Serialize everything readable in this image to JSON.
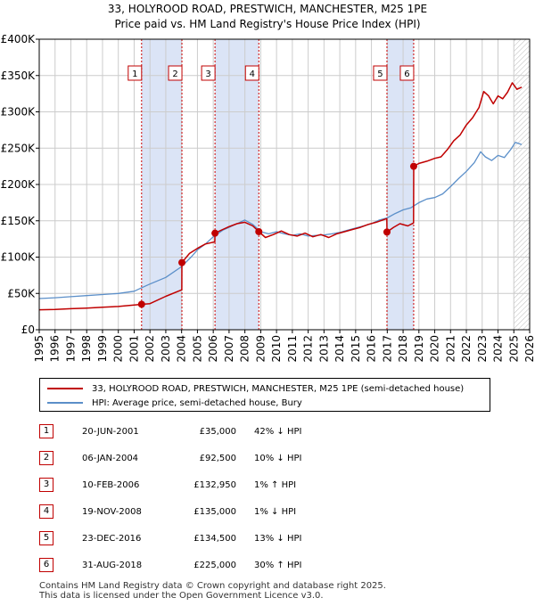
{
  "title": {
    "line1": "33, HOLYROOD ROAD, PRESTWICH, MANCHESTER, M25 1PE",
    "line2": "Price paid vs. HM Land Registry's House Price Index (HPI)"
  },
  "chart_data": {
    "type": "line",
    "title": "33, HOLYROOD ROAD, PRESTWICH, MANCHESTER, M25 1PE — Price paid vs. HM Land Registry's House Price Index (HPI)",
    "xlim": [
      1995,
      2026
    ],
    "ylim": [
      0,
      400000
    ],
    "x_ticks": [
      1995,
      1996,
      1997,
      1998,
      1999,
      2000,
      2001,
      2002,
      2003,
      2004,
      2005,
      2006,
      2007,
      2008,
      2009,
      2010,
      2011,
      2012,
      2013,
      2014,
      2015,
      2016,
      2017,
      2018,
      2019,
      2020,
      2021,
      2022,
      2023,
      2024,
      2025,
      2026
    ],
    "y_ticks": [
      {
        "value": 0,
        "label": "£0"
      },
      {
        "value": 50000,
        "label": "£50K"
      },
      {
        "value": 100000,
        "label": "£100K"
      },
      {
        "value": 150000,
        "label": "£150K"
      },
      {
        "value": 200000,
        "label": "£200K"
      },
      {
        "value": 250000,
        "label": "£250K"
      },
      {
        "value": 300000,
        "label": "£300K"
      },
      {
        "value": 350000,
        "label": "£350K"
      },
      {
        "value": 400000,
        "label": "£400K"
      }
    ],
    "grid": true,
    "colors": {
      "property": "#c00000",
      "hpi": "#5b8fc9",
      "shade": "#dbe4f6",
      "vline": "#cc0000",
      "axis": "#000000",
      "grid": "#cccccc"
    },
    "shaded_periods": [
      [
        2001.47,
        2004.02
      ],
      [
        2006.11,
        2008.88
      ],
      [
        2016.98,
        2018.67
      ]
    ],
    "hatch_from": 2025.0,
    "series": [
      {
        "name": "33, HOLYROOD ROAD, PRESTWICH, MANCHESTER, M25 1PE (semi-detached house)",
        "key": "property",
        "points": [
          [
            1995,
            27500
          ],
          [
            1996,
            28000
          ],
          [
            1997,
            29000
          ],
          [
            1998,
            29800
          ],
          [
            1999,
            31000
          ],
          [
            2000,
            32000
          ],
          [
            2001.47,
            35000
          ],
          [
            2002,
            36000
          ],
          [
            2003,
            46000
          ],
          [
            2004.01,
            55000
          ],
          [
            2004.02,
            92500
          ],
          [
            2004.5,
            105000
          ],
          [
            2005,
            112000
          ],
          [
            2005.5,
            118000
          ],
          [
            2006.1,
            121000
          ],
          [
            2006.11,
            132950
          ],
          [
            2006.6,
            138000
          ],
          [
            2007,
            142000
          ],
          [
            2007.5,
            146000
          ],
          [
            2008,
            148000
          ],
          [
            2008.5,
            143000
          ],
          [
            2008.88,
            135000
          ],
          [
            2009.3,
            127000
          ],
          [
            2009.8,
            131000
          ],
          [
            2010.3,
            136000
          ],
          [
            2010.8,
            131000
          ],
          [
            2011.3,
            129000
          ],
          [
            2011.8,
            133000
          ],
          [
            2012.3,
            128000
          ],
          [
            2012.8,
            131000
          ],
          [
            2013.3,
            127000
          ],
          [
            2013.8,
            132000
          ],
          [
            2014.3,
            135000
          ],
          [
            2014.8,
            138000
          ],
          [
            2015.3,
            141000
          ],
          [
            2015.8,
            145000
          ],
          [
            2016.3,
            148000
          ],
          [
            2016.97,
            153000
          ],
          [
            2016.98,
            134500
          ],
          [
            2017.4,
            141000
          ],
          [
            2017.8,
            146000
          ],
          [
            2018.3,
            143000
          ],
          [
            2018.66,
            147000
          ],
          [
            2018.67,
            225000
          ],
          [
            2019,
            229000
          ],
          [
            2019.5,
            232000
          ],
          [
            2020,
            236000
          ],
          [
            2020.4,
            238000
          ],
          [
            2020.8,
            248000
          ],
          [
            2021.2,
            260000
          ],
          [
            2021.6,
            268000
          ],
          [
            2022,
            282000
          ],
          [
            2022.4,
            292000
          ],
          [
            2022.8,
            306000
          ],
          [
            2023.1,
            328000
          ],
          [
            2023.4,
            322000
          ],
          [
            2023.7,
            311000
          ],
          [
            2024,
            322000
          ],
          [
            2024.3,
            318000
          ],
          [
            2024.6,
            327000
          ],
          [
            2024.9,
            340000
          ],
          [
            2025.2,
            331000
          ],
          [
            2025.5,
            334000
          ]
        ]
      },
      {
        "name": "HPI: Average price, semi-detached house, Bury",
        "key": "hpi",
        "points": [
          [
            1995,
            43000
          ],
          [
            1996,
            44000
          ],
          [
            1997,
            45500
          ],
          [
            1998,
            47000
          ],
          [
            1999,
            48500
          ],
          [
            2000,
            50000
          ],
          [
            2001,
            53000
          ],
          [
            2001.5,
            58000
          ],
          [
            2002,
            63000
          ],
          [
            2003,
            72000
          ],
          [
            2004,
            87000
          ],
          [
            2004.6,
            100000
          ],
          [
            2005,
            110000
          ],
          [
            2005.5,
            118000
          ],
          [
            2006,
            128000
          ],
          [
            2006.6,
            137000
          ],
          [
            2007,
            141000
          ],
          [
            2007.6,
            147000
          ],
          [
            2008,
            151000
          ],
          [
            2008.5,
            145000
          ],
          [
            2009,
            135000
          ],
          [
            2009.5,
            132000
          ],
          [
            2010,
            135000
          ],
          [
            2010.5,
            132000
          ],
          [
            2011,
            130000
          ],
          [
            2011.5,
            132000
          ],
          [
            2012,
            129000
          ],
          [
            2012.5,
            130000
          ],
          [
            2013,
            130500
          ],
          [
            2013.5,
            132000
          ],
          [
            2014,
            134000
          ],
          [
            2014.5,
            137000
          ],
          [
            2015,
            140000
          ],
          [
            2015.5,
            143000
          ],
          [
            2016,
            146000
          ],
          [
            2016.5,
            151000
          ],
          [
            2017,
            154000
          ],
          [
            2017.5,
            160000
          ],
          [
            2018,
            165000
          ],
          [
            2018.5,
            168000
          ],
          [
            2019,
            175000
          ],
          [
            2019.5,
            180000
          ],
          [
            2020,
            182000
          ],
          [
            2020.5,
            187000
          ],
          [
            2021,
            197000
          ],
          [
            2021.5,
            208000
          ],
          [
            2022,
            218000
          ],
          [
            2022.5,
            230000
          ],
          [
            2022.9,
            245000
          ],
          [
            2023.2,
            238000
          ],
          [
            2023.6,
            233000
          ],
          [
            2024,
            240000
          ],
          [
            2024.4,
            237000
          ],
          [
            2024.8,
            248000
          ],
          [
            2025.1,
            258000
          ],
          [
            2025.5,
            255000
          ]
        ]
      }
    ],
    "transactions": [
      {
        "label": "1",
        "x": 2001.47,
        "y": 35000
      },
      {
        "label": "2",
        "x": 2004.02,
        "y": 92500
      },
      {
        "label": "3",
        "x": 2006.11,
        "y": 132950
      },
      {
        "label": "4",
        "x": 2008.88,
        "y": 135000
      },
      {
        "label": "5",
        "x": 2016.98,
        "y": 134500
      },
      {
        "label": "6",
        "x": 2018.67,
        "y": 225000
      }
    ]
  },
  "legend": {
    "property": "33, HOLYROOD ROAD, PRESTWICH, MANCHESTER, M25 1PE (semi-detached house)",
    "hpi": "HPI: Average price, semi-detached house, Bury"
  },
  "sales": [
    {
      "num": "1",
      "date": "20-JUN-2001",
      "price": "£35,000",
      "hpi": "42% ↓ HPI"
    },
    {
      "num": "2",
      "date": "06-JAN-2004",
      "price": "£92,500",
      "hpi": "10% ↓ HPI"
    },
    {
      "num": "3",
      "date": "10-FEB-2006",
      "price": "£132,950",
      "hpi": "1% ↑ HPI"
    },
    {
      "num": "4",
      "date": "19-NOV-2008",
      "price": "£135,000",
      "hpi": "1% ↓ HPI"
    },
    {
      "num": "5",
      "date": "23-DEC-2016",
      "price": "£134,500",
      "hpi": "13% ↓ HPI"
    },
    {
      "num": "6",
      "date": "31-AUG-2018",
      "price": "£225,000",
      "hpi": "30% ↑ HPI"
    }
  ],
  "footer": {
    "line1": "Contains HM Land Registry data © Crown copyright and database right 2025.",
    "line2": "This data is licensed under the Open Government Licence v3.0."
  }
}
